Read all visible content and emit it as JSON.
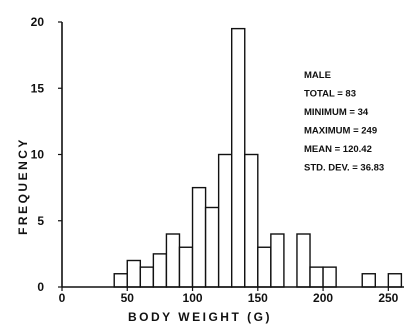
{
  "chart_data": {
    "type": "bar",
    "xlabel": "BODY WEIGHT (G)",
    "ylabel": "FREQUENCY",
    "xlim": [
      0,
      262
    ],
    "ylim": [
      0,
      20
    ],
    "xticks": [
      0,
      50,
      100,
      150,
      200,
      250
    ],
    "yticks": [
      0,
      5,
      10,
      15,
      20
    ],
    "xtick_labels": [
      "0",
      "50",
      "100",
      "150",
      "200",
      "250"
    ],
    "ytick_labels": [
      "0",
      "5",
      "10",
      "15",
      "20"
    ],
    "bin_width": 10,
    "bins": [
      {
        "start": 40,
        "end": 50,
        "value": 1
      },
      {
        "start": 50,
        "end": 60,
        "value": 2
      },
      {
        "start": 60,
        "end": 70,
        "value": 1.5
      },
      {
        "start": 70,
        "end": 80,
        "value": 2.5
      },
      {
        "start": 80,
        "end": 90,
        "value": 4
      },
      {
        "start": 90,
        "end": 100,
        "value": 3
      },
      {
        "start": 100,
        "end": 110,
        "value": 7.5
      },
      {
        "start": 110,
        "end": 120,
        "value": 6
      },
      {
        "start": 120,
        "end": 130,
        "value": 10
      },
      {
        "start": 130,
        "end": 140,
        "value": 19.5
      },
      {
        "start": 140,
        "end": 150,
        "value": 10
      },
      {
        "start": 150,
        "end": 160,
        "value": 3
      },
      {
        "start": 160,
        "end": 170,
        "value": 4
      },
      {
        "start": 180,
        "end": 190,
        "value": 4
      },
      {
        "start": 190,
        "end": 200,
        "value": 1.5
      },
      {
        "start": 200,
        "end": 210,
        "value": 1.5
      },
      {
        "start": 230,
        "end": 240,
        "value": 1
      },
      {
        "start": 250,
        "end": 260,
        "value": 1
      }
    ],
    "annotations": [
      "MALE",
      "TOTAL = 83",
      "MINIMUM = 34",
      "MAXIMUM = 249",
      "MEAN = 120.42",
      "STD. DEV. = 36.83"
    ],
    "grid": false,
    "legend": "none"
  }
}
